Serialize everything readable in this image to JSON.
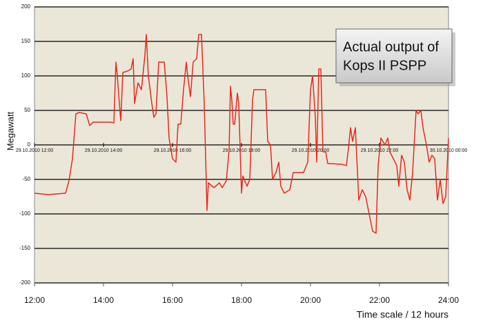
{
  "chart_data": {
    "type": "line",
    "annotation": [
      "Actual output of",
      "Kops II PSPP"
    ],
    "ylabel": "Megawatt",
    "xlabel": "Time scale / 12 hours",
    "color": "#e8281e",
    "grid": true,
    "xlim": [
      12,
      24
    ],
    "ylim": [
      -200,
      200
    ],
    "yticks": [
      -200,
      -150,
      -100,
      -50,
      0,
      50,
      100,
      150,
      200
    ],
    "xticks": [
      {
        "value": 12,
        "label": "12:00"
      },
      {
        "value": 14,
        "label": "14:00"
      },
      {
        "value": 16,
        "label": "16:00"
      },
      {
        "value": 18,
        "label": "18:00"
      },
      {
        "value": 20,
        "label": "20:00"
      },
      {
        "value": 22,
        "label": "22:00"
      },
      {
        "value": 24,
        "label": "24:00"
      }
    ],
    "date_ticks": [
      {
        "value": 12,
        "label": "29.10.2010 12:00"
      },
      {
        "value": 14,
        "label": "29.10.2010 14:00"
      },
      {
        "value": 16,
        "label": "29.10.2010 16:00"
      },
      {
        "value": 18,
        "label": "29.10.2010 18:00"
      },
      {
        "value": 20,
        "label": "29.10.2010 20:00"
      },
      {
        "value": 22,
        "label": "29.10.2010 22:00"
      },
      {
        "value": 24,
        "label": "30.10.2010 00:00"
      }
    ],
    "x": [
      12.0,
      12.4,
      12.9,
      13.0,
      13.1,
      13.2,
      13.3,
      13.5,
      13.6,
      13.7,
      14.2,
      14.3,
      14.36,
      14.4,
      14.46,
      14.5,
      14.56,
      14.7,
      14.8,
      14.86,
      14.9,
      15.0,
      15.1,
      15.2,
      15.24,
      15.3,
      15.4,
      15.46,
      15.52,
      15.6,
      15.76,
      15.84,
      15.9,
      16.0,
      16.1,
      16.16,
      16.24,
      16.32,
      16.4,
      16.44,
      16.52,
      16.6,
      16.7,
      16.76,
      16.84,
      16.92,
      17.0,
      17.04,
      17.2,
      17.36,
      17.44,
      17.56,
      17.64,
      17.68,
      17.72,
      17.76,
      17.8,
      17.88,
      17.92,
      18.0,
      18.04,
      18.16,
      18.24,
      18.32,
      18.36,
      18.7,
      18.76,
      18.84,
      18.9,
      19.0,
      19.08,
      19.14,
      19.24,
      19.4,
      19.5,
      19.8,
      19.92,
      20.0,
      20.06,
      20.14,
      20.18,
      20.24,
      20.3,
      20.36,
      20.44,
      20.5,
      20.9,
      21.04,
      21.1,
      21.16,
      21.22,
      21.3,
      21.4,
      21.5,
      21.6,
      21.7,
      21.8,
      21.9,
      21.96,
      22.04,
      22.16,
      22.24,
      22.3,
      22.4,
      22.5,
      22.56,
      22.64,
      22.72,
      22.8,
      22.88,
      22.96,
      23.06,
      23.12,
      23.2,
      23.26,
      23.36,
      23.44,
      23.52,
      23.6,
      23.68,
      23.76,
      23.84,
      23.92,
      24.0
    ],
    "values": [
      -70,
      -72,
      -70,
      -52,
      -20,
      45,
      47,
      45,
      28,
      33,
      33,
      32,
      120,
      100,
      60,
      35,
      105,
      107,
      110,
      125,
      60,
      90,
      80,
      130,
      160,
      100,
      60,
      40,
      45,
      120,
      120,
      70,
      10,
      -20,
      -25,
      30,
      30,
      80,
      120,
      100,
      70,
      120,
      125,
      160,
      160,
      60,
      -95,
      -55,
      -62,
      -55,
      -62,
      -52,
      -8,
      85,
      65,
      30,
      30,
      75,
      60,
      -70,
      -45,
      -60,
      -50,
      65,
      80,
      80,
      5,
      0,
      -50,
      -40,
      -25,
      -60,
      -70,
      -65,
      -40,
      -40,
      -25,
      80,
      100,
      40,
      -25,
      110,
      110,
      -10,
      -10,
      -27,
      -28,
      -30,
      -5,
      25,
      5,
      25,
      -80,
      -65,
      -75,
      -100,
      -125,
      -128,
      -30,
      10,
      0,
      10,
      -10,
      -20,
      -30,
      -60,
      -15,
      -25,
      -65,
      -80,
      -40,
      50,
      45,
      50,
      25,
      0,
      -25,
      -15,
      -20,
      -80,
      -50,
      -85,
      -75,
      10
    ]
  }
}
